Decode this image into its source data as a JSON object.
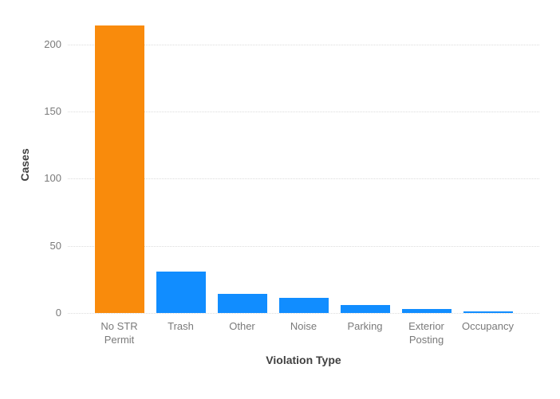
{
  "chart_data": {
    "type": "bar",
    "title": "",
    "xlabel": "Violation Type",
    "ylabel": "Cases",
    "categories": [
      "No STR Permit",
      "Trash",
      "Other",
      "Noise",
      "Parking",
      "Exterior Posting",
      "Occupancy"
    ],
    "values": [
      214,
      31,
      14,
      11,
      6,
      3,
      1
    ],
    "bar_colors": [
      "#f98b0c",
      "#118dff",
      "#118dff",
      "#118dff",
      "#118dff",
      "#118dff",
      "#118dff"
    ],
    "yticks": [
      0,
      50,
      100,
      150,
      200
    ],
    "ylim": [
      0,
      220
    ],
    "grid": "horizontal-dotted",
    "legend": "none",
    "colors": {
      "highlight_orange": "#f98b0c",
      "default_blue": "#118dff",
      "gridline": "#dcdcdc",
      "tick_label": "#7a7a7a",
      "axis_title": "#404040",
      "background": "#ffffff"
    }
  }
}
